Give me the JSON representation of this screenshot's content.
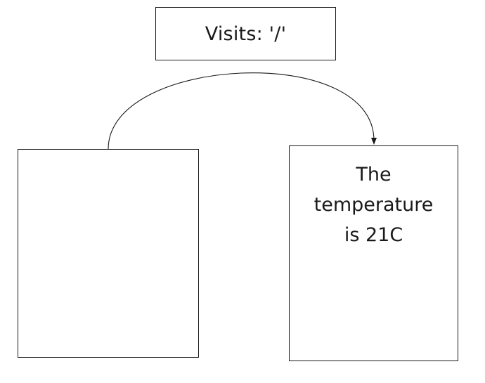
{
  "diagram": {
    "top_box": {
      "label": "Visits: '/'"
    },
    "left_box": {
      "label": ""
    },
    "right_box": {
      "lines": [
        "The",
        "temperature",
        "is 21C"
      ]
    },
    "connector": {
      "from": "left_box",
      "to": "right_box",
      "color": "#1a1a1a"
    }
  }
}
